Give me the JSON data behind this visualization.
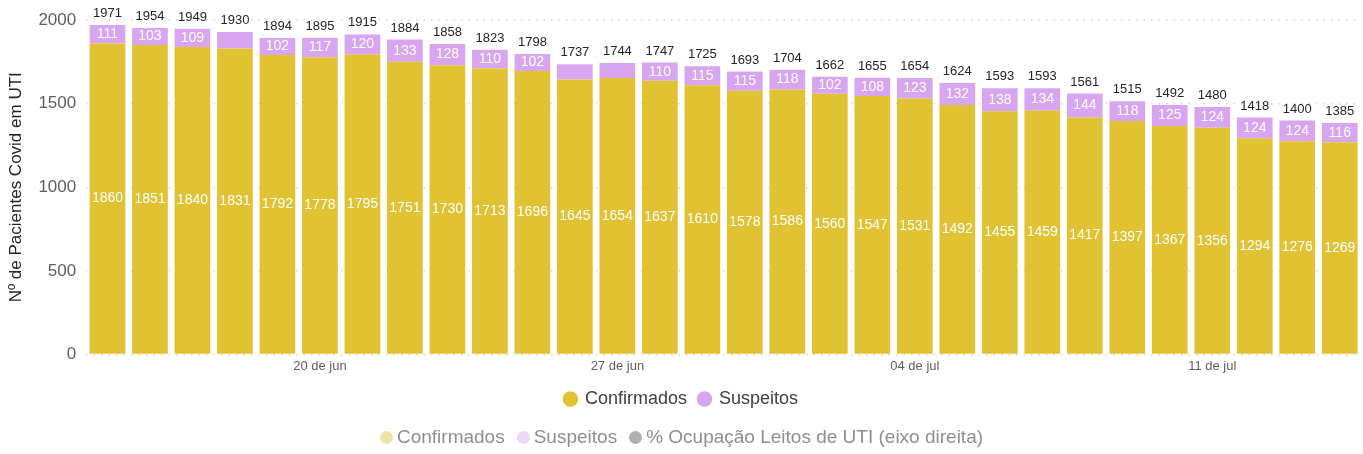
{
  "chart_data": {
    "type": "bar",
    "stacked": true,
    "ylabel": "Nº de Pacientes Covid em UTI",
    "categories": [
      null,
      null,
      null,
      null,
      null,
      "20 de jun",
      null,
      null,
      null,
      null,
      null,
      null,
      "27 de jun",
      null,
      null,
      null,
      null,
      null,
      null,
      "04 de jul",
      null,
      null,
      null,
      null,
      null,
      null,
      "11 de jul",
      null,
      null,
      null
    ],
    "series": [
      {
        "name": "Confirmados",
        "color": "#e0c233",
        "values": [
          1860,
          1851,
          1840,
          1831,
          1792,
          1778,
          1795,
          1751,
          1730,
          1713,
          1696,
          1645,
          1654,
          1637,
          1610,
          1578,
          1586,
          1560,
          1547,
          1531,
          1492,
          1455,
          1459,
          1417,
          1397,
          1367,
          1356,
          1294,
          1276,
          1269
        ],
        "value_labels": [
          "1860",
          "1851",
          "1840",
          "1831",
          "1792",
          "1778",
          "1795",
          "1751",
          "1730",
          "1713",
          "1696",
          "1645",
          "1654",
          "1637",
          "1610",
          "1578",
          "1586",
          "1560",
          "1547",
          "1531",
          "1492",
          "1455",
          "1459",
          "1417",
          "1397",
          "1367",
          "1356",
          "1294",
          "1276",
          "1269"
        ]
      },
      {
        "name": "Suspeitos",
        "color": "#d8a6f0",
        "values": [
          111,
          103,
          109,
          99,
          102,
          117,
          120,
          133,
          128,
          110,
          102,
          92,
          90,
          110,
          115,
          115,
          118,
          102,
          108,
          123,
          132,
          138,
          134,
          144,
          118,
          125,
          124,
          124,
          124,
          116
        ],
        "value_labels": [
          "111",
          "103",
          "109",
          null,
          "102",
          "117",
          "120",
          "133",
          "128",
          "110",
          "102",
          null,
          null,
          "110",
          "115",
          "115",
          "118",
          "102",
          "108",
          "123",
          "132",
          "138",
          "134",
          "144",
          "118",
          "125",
          "124",
          "124",
          "124",
          "116"
        ]
      }
    ],
    "totals": [
      "1971",
      "1954",
      "1949",
      "1930",
      "1894",
      "1895",
      "1915",
      "1884",
      "1858",
      "1823",
      "1798",
      "1737",
      "1744",
      "1747",
      "1725",
      "1693",
      "1704",
      "1662",
      "1655",
      "1654",
      "1624",
      "1593",
      "1593",
      "1561",
      "1515",
      "1492",
      "1480",
      "1418",
      "1400",
      "1385"
    ],
    "ylim": [
      0,
      2000
    ],
    "yticks": [
      0,
      500,
      1000,
      1500,
      2000
    ],
    "grid": "y",
    "legend": "bottom",
    "annotations": [
      "Confirmados",
      "Suspeitos",
      "% Ocupação Leitos de UTI (eixo direita)"
    ]
  }
}
